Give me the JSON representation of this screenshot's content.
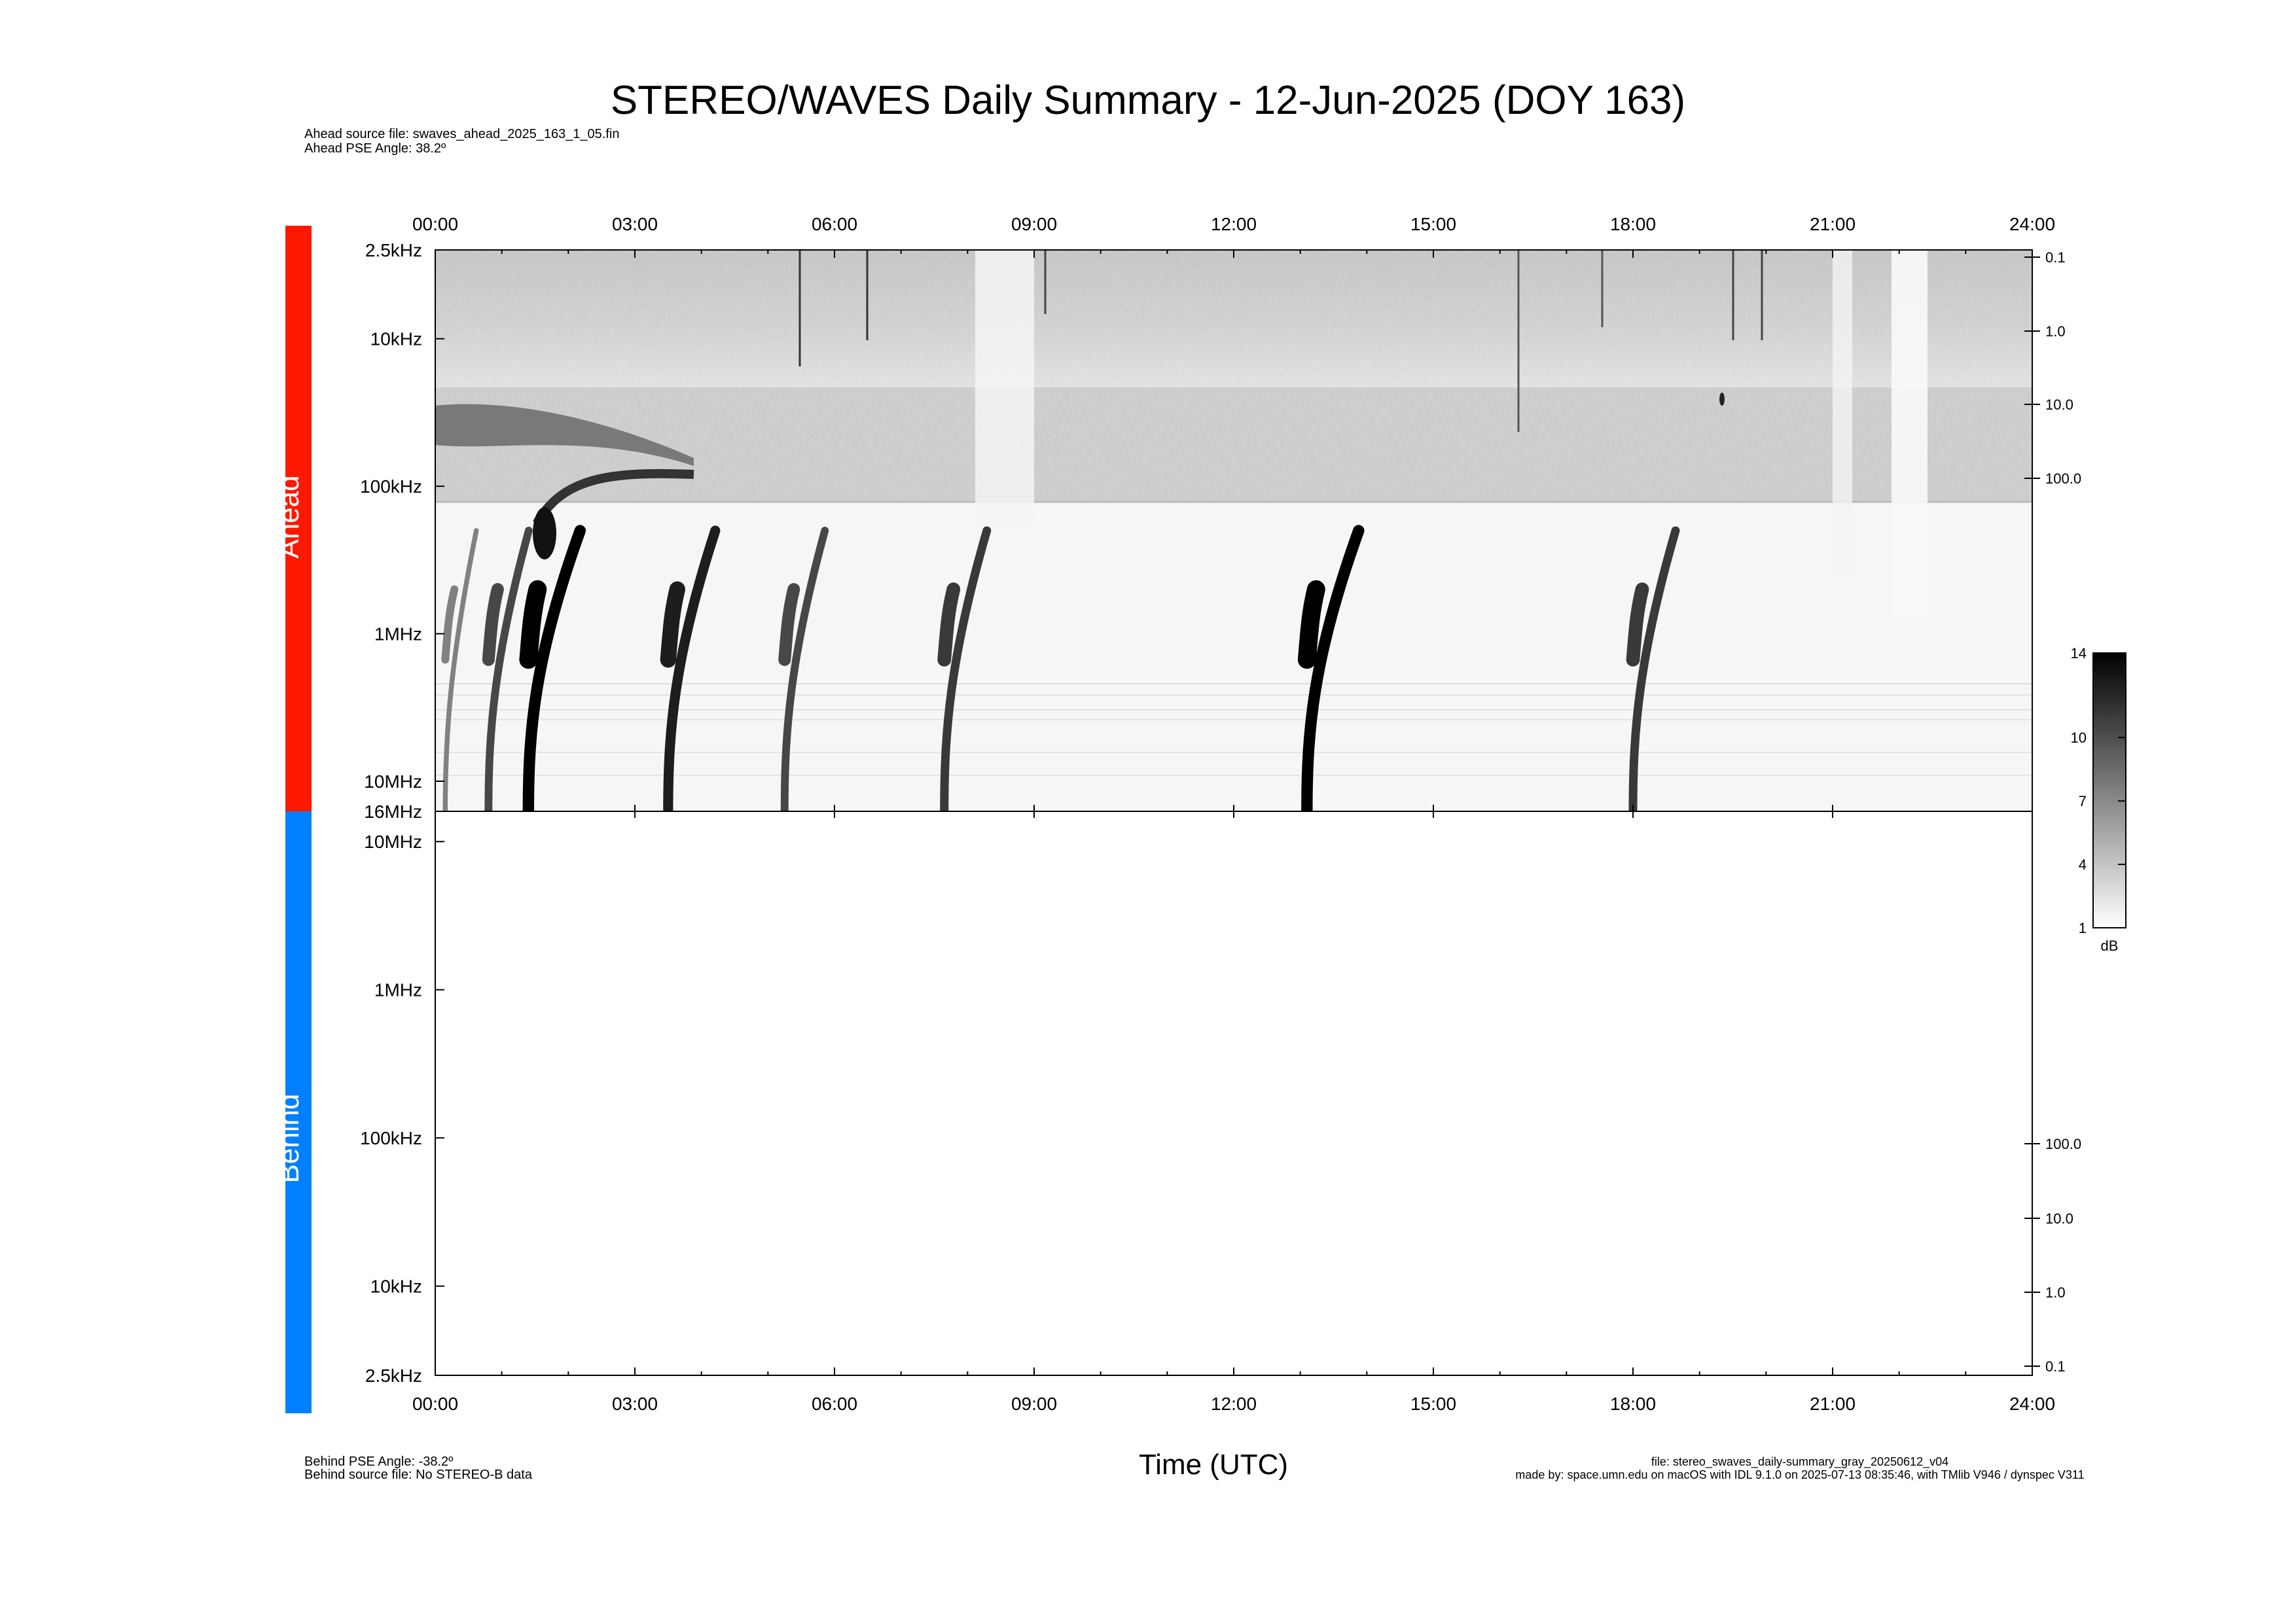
{
  "title": "STEREO/WAVES Daily Summary - 12-Jun-2025 (DOY 163)",
  "header": {
    "ahead_source": "Ahead source file: swaves_ahead_2025_163_1_05.fin",
    "ahead_pse": "Ahead PSE Angle:   38.2º"
  },
  "footer": {
    "behind_pse": "Behind PSE Angle:  -38.2º",
    "behind_source": "Behind source file: No STEREO-B data",
    "file": "file: stereo_swaves_daily-summary_gray_20250612_v04",
    "made_by": "made by: space.umn.edu on macOS with IDL 9.1.0 on 2025-07-13 08:35:46, with TMlib V946 / dynspec V311"
  },
  "colors": {
    "ahead": "#ff1800",
    "behind": "#0080ff"
  },
  "chart_data": {
    "type": "heatmap",
    "title": "STEREO/WAVES Daily Summary - 12-Jun-2025 (DOY 163)",
    "xlabel": "Time (UTC)",
    "x_ticks": [
      "00:00",
      "03:00",
      "06:00",
      "09:00",
      "12:00",
      "15:00",
      "18:00",
      "21:00",
      "24:00"
    ],
    "xlim_hours": [
      0,
      24
    ],
    "ahead_panel": {
      "label": "Ahead",
      "y_scale": "log",
      "y_ticks": [
        "2.5kHz",
        "10kHz",
        "100kHz",
        "1MHz",
        "10MHz",
        "16MHz"
      ],
      "y_tick_freqs_khz": [
        2.5,
        10,
        100,
        1000,
        10000,
        16000
      ],
      "right_ticks": [
        "0.1",
        "1.0",
        "10.0",
        "100.0"
      ],
      "bursts": [
        {
          "start_hour": 0.15,
          "intensity": 5
        },
        {
          "start_hour": 0.8,
          "intensity": 9
        },
        {
          "start_hour": 1.4,
          "intensity": 14
        },
        {
          "start_hour": 3.5,
          "intensity": 12
        },
        {
          "start_hour": 5.25,
          "intensity": 9
        },
        {
          "start_hour": 7.65,
          "intensity": 10
        },
        {
          "start_hour": 13.1,
          "intensity": 14
        },
        {
          "start_hour": 18.0,
          "intensity": 10
        }
      ]
    },
    "behind_panel": {
      "label": "Behind",
      "y_scale": "log",
      "y_ticks": [
        "10MHz",
        "1MHz",
        "100kHz",
        "10kHz",
        "2.5kHz"
      ],
      "right_ticks": [
        "100.0",
        "10.0",
        "1.0",
        "0.1"
      ]
    },
    "colorbar": {
      "ticks": [
        "14",
        "10",
        "7",
        "4",
        "1"
      ],
      "tick_values": [
        14,
        10,
        7,
        4,
        1
      ],
      "range": [
        1,
        14
      ],
      "unit": "dB"
    }
  }
}
